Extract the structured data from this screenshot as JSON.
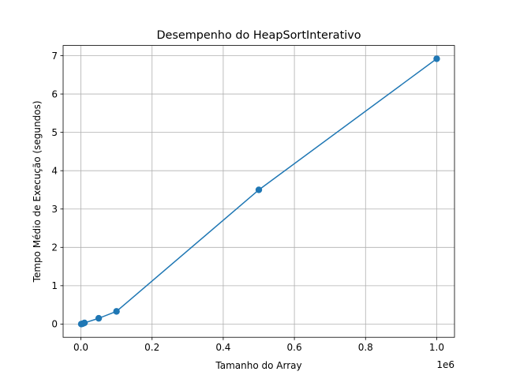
{
  "chart_data": {
    "type": "line",
    "title": "Desempenho do HeapSortInterativo",
    "xlabel": "Tamanho do Array",
    "ylabel": "Tempo Médio de Execução (segundos)",
    "x_offset_label": "1e6",
    "x_scale": 1000000,
    "xlim": [
      -0.05,
      1.05
    ],
    "ylim": [
      -0.346,
      7.266
    ],
    "x_ticks": [
      0.0,
      0.2,
      0.4,
      0.6,
      0.8,
      1.0
    ],
    "x_tick_labels": [
      "0.0",
      "0.2",
      "0.4",
      "0.6",
      "0.8",
      "1.0"
    ],
    "y_ticks": [
      0,
      1,
      2,
      3,
      4,
      5,
      6,
      7
    ],
    "y_tick_labels": [
      "0",
      "1",
      "2",
      "3",
      "4",
      "5",
      "6",
      "7"
    ],
    "grid": true,
    "series": [
      {
        "color": "#1f77b4",
        "marker": "circle",
        "x": [
          1000,
          5000,
          10000,
          50000,
          100000,
          500000,
          1000000
        ],
        "y": [
          0.0,
          0.01,
          0.03,
          0.15,
          0.33,
          3.5,
          6.92
        ]
      }
    ]
  }
}
